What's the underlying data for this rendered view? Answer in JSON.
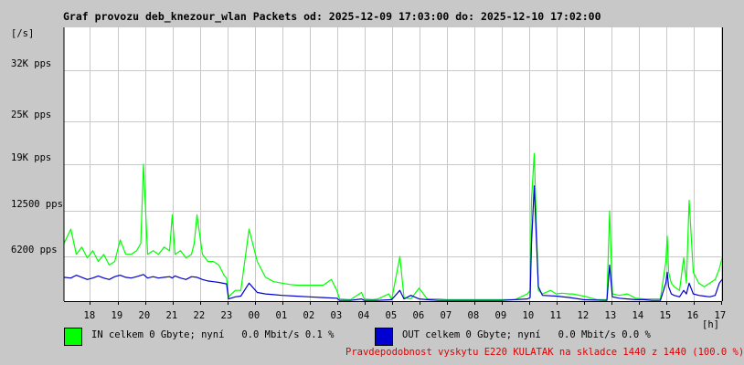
{
  "title": "Graf provozu deb_knezour_wlan Packets od: 2025-12-09 17:03:00 do: 2025-12-10 17:02:00",
  "legend": {
    "in_label": "IN celkem 0 Gbyte; nyní   0.0 Mbit/s 0.1 %",
    "out_label": "OUT celkem 0 Gbyte; nyní   0.0 Mbit/s 0.0 %",
    "in_color": "#00ff00",
    "out_color": "#0000d0"
  },
  "note": "Pravdepodobnost vyskytu E220 KULATAK na skladce 1440 z 1440 (100.0 %)",
  "chart_data": {
    "type": "area",
    "title": "Graf provozu deb_knezour_wlan Packets od: 2025-12-09 17:03:00 do: 2025-12-10 17:02:00",
    "ylabel": "[/s]",
    "xlabel": "[h]",
    "ylim": [
      0,
      38000
    ],
    "y_ticks": [
      {
        "value": 6200,
        "label": "6200 pps"
      },
      {
        "value": 12500,
        "label": "12500 pps"
      },
      {
        "value": 19000,
        "label": "19K pps"
      },
      {
        "value": 25000,
        "label": "25K pps"
      },
      {
        "value": 32000,
        "label": "32K pps"
      }
    ],
    "x_range": [
      17.05,
      41.05
    ],
    "x_ticks": [
      {
        "value": 18,
        "label": "18"
      },
      {
        "value": 19,
        "label": "19"
      },
      {
        "value": 20,
        "label": "20"
      },
      {
        "value": 21,
        "label": "21"
      },
      {
        "value": 22,
        "label": "22"
      },
      {
        "value": 23,
        "label": "23"
      },
      {
        "value": 24,
        "label": "00"
      },
      {
        "value": 25,
        "label": "01"
      },
      {
        "value": 26,
        "label": "02"
      },
      {
        "value": 27,
        "label": "03"
      },
      {
        "value": 28,
        "label": "04"
      },
      {
        "value": 29,
        "label": "05"
      },
      {
        "value": 30,
        "label": "06"
      },
      {
        "value": 31,
        "label": "07"
      },
      {
        "value": 32,
        "label": "08"
      },
      {
        "value": 33,
        "label": "09"
      },
      {
        "value": 34,
        "label": "10"
      },
      {
        "value": 35,
        "label": "11"
      },
      {
        "value": 36,
        "label": "12"
      },
      {
        "value": 37,
        "label": "13"
      },
      {
        "value": 38,
        "label": "14"
      },
      {
        "value": 39,
        "label": "15"
      },
      {
        "value": 40,
        "label": "16"
      },
      {
        "value": 41,
        "label": "17"
      }
    ],
    "grid": true,
    "series": [
      {
        "name": "IN",
        "x": [
          17.05,
          17.3,
          17.5,
          17.7,
          17.9,
          18.1,
          18.3,
          18.5,
          18.7,
          18.9,
          19.1,
          19.3,
          19.5,
          19.7,
          19.85,
          19.95,
          20.1,
          20.3,
          20.5,
          20.7,
          20.9,
          21.0,
          21.1,
          21.3,
          21.5,
          21.7,
          21.8,
          21.9,
          22.1,
          22.3,
          22.5,
          22.7,
          22.9,
          22.98,
          23.05,
          23.3,
          23.5,
          23.8,
          24.1,
          24.4,
          24.7,
          25.0,
          25.3,
          25.6,
          25.9,
          26.2,
          26.5,
          26.8,
          27.0,
          27.1,
          27.5,
          27.9,
          28.0,
          28.3,
          28.5,
          28.9,
          29.0,
          29.3,
          29.45,
          29.7,
          30.0,
          30.3,
          30.7,
          31.0,
          31.5,
          32.0,
          32.5,
          33.0,
          33.5,
          33.95,
          34.05,
          34.1,
          34.2,
          34.35,
          34.5,
          34.8,
          35.0,
          35.2,
          35.5,
          35.6,
          36.0,
          36.5,
          36.8,
          36.85,
          36.95,
          37.05,
          37.3,
          37.6,
          37.9,
          38.2,
          38.5,
          38.8,
          39.0,
          39.05,
          39.1,
          39.2,
          39.3,
          39.5,
          39.65,
          39.75,
          39.85,
          40.0,
          40.2,
          40.4,
          40.6,
          40.8,
          40.95,
          41.05
        ],
        "values": [
          8000,
          10000,
          6500,
          7500,
          6000,
          7000,
          5500,
          6500,
          5000,
          5500,
          8500,
          6500,
          6500,
          7000,
          8000,
          19000,
          6500,
          7000,
          6500,
          7500,
          7000,
          12000,
          6500,
          7000,
          6000,
          6500,
          8000,
          12000,
          6500,
          5500,
          5500,
          5000,
          3500,
          3200,
          600,
          1500,
          1500,
          10000,
          5500,
          3300,
          2700,
          2500,
          2300,
          2200,
          2200,
          2200,
          2200,
          3000,
          1500,
          300,
          200,
          1200,
          300,
          200,
          300,
          1000,
          200,
          6200,
          500,
          300,
          1800,
          300,
          300,
          200,
          200,
          200,
          200,
          200,
          200,
          1000,
          1500,
          14000,
          20500,
          1500,
          1000,
          1500,
          1000,
          1100,
          1000,
          1000,
          700,
          200,
          200,
          200,
          12500,
          1000,
          800,
          1000,
          400,
          300,
          300,
          300,
          5500,
          9000,
          4000,
          2500,
          2000,
          1500,
          6000,
          2500,
          14000,
          4000,
          2500,
          2000,
          2500,
          3000,
          4500,
          6000
        ],
        "color": "#00ff00"
      },
      {
        "name": "OUT",
        "x": [
          17.05,
          17.3,
          17.5,
          17.7,
          17.9,
          18.1,
          18.3,
          18.5,
          18.7,
          18.9,
          19.1,
          19.3,
          19.5,
          19.7,
          19.95,
          20.1,
          20.3,
          20.5,
          20.7,
          20.9,
          21.0,
          21.1,
          21.3,
          21.5,
          21.7,
          21.9,
          22.1,
          22.3,
          22.5,
          22.7,
          22.98,
          23.05,
          23.3,
          23.5,
          23.8,
          24.1,
          24.4,
          24.7,
          25.0,
          25.5,
          26.0,
          26.5,
          27.0,
          27.1,
          27.5,
          27.9,
          28.0,
          28.5,
          29.0,
          29.3,
          29.45,
          29.7,
          30.0,
          30.3,
          30.7,
          31.0,
          31.5,
          32.0,
          33.0,
          33.95,
          34.05,
          34.1,
          34.2,
          34.35,
          34.5,
          35.0,
          35.5,
          36.0,
          36.8,
          36.85,
          36.95,
          37.05,
          37.3,
          37.6,
          37.9,
          38.2,
          38.5,
          38.8,
          39.0,
          39.05,
          39.1,
          39.2,
          39.3,
          39.5,
          39.65,
          39.75,
          39.85,
          40.0,
          40.2,
          40.4,
          40.6,
          40.8,
          40.95,
          41.05
        ],
        "values": [
          3300,
          3200,
          3600,
          3300,
          3000,
          3200,
          3500,
          3200,
          3000,
          3400,
          3600,
          3300,
          3200,
          3400,
          3700,
          3200,
          3400,
          3200,
          3300,
          3400,
          3200,
          3500,
          3200,
          3000,
          3400,
          3300,
          3000,
          2800,
          2700,
          2600,
          2400,
          300,
          600,
          700,
          2500,
          1200,
          1000,
          900,
          800,
          700,
          600,
          500,
          400,
          100,
          100,
          300,
          100,
          100,
          200,
          1500,
          300,
          800,
          300,
          200,
          100,
          100,
          100,
          100,
          100,
          300,
          500,
          8000,
          16000,
          2000,
          800,
          700,
          500,
          200,
          100,
          100,
          5000,
          600,
          400,
          300,
          200,
          200,
          100,
          100,
          2500,
          4000,
          2000,
          1000,
          800,
          600,
          1500,
          1000,
          2500,
          1000,
          800,
          700,
          600,
          800,
          2500,
          3000
        ],
        "color": "#0000d0"
      }
    ]
  }
}
